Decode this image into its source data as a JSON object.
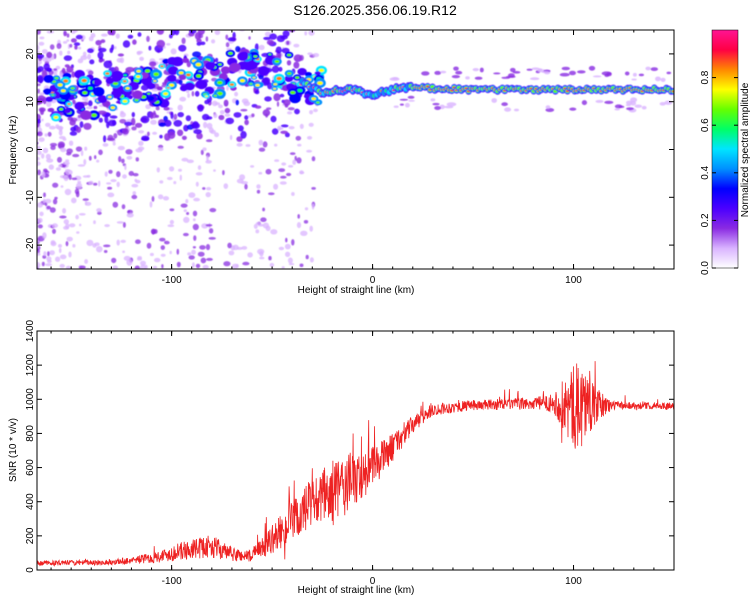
{
  "title": "S126.2025.356.06.19.R12",
  "chart_data": [
    {
      "type": "heatmap",
      "name": "spectrogram",
      "xlabel": "Height of straight line (km)",
      "ylabel": "Frequency (Hz)",
      "xlim": [
        -167,
        150
      ],
      "ylim": [
        -25,
        25
      ],
      "xticks": [
        -100,
        0,
        100
      ],
      "yticks": [
        -20,
        -10,
        0,
        10,
        20
      ],
      "grid": false,
      "ridge": [
        {
          "x": -160,
          "freq": 11
        },
        {
          "x": -120,
          "freq": 12
        },
        {
          "x": -95,
          "freq": 15
        },
        {
          "x": -70,
          "freq": 16
        },
        {
          "x": -55,
          "freq": 18
        },
        {
          "x": -40,
          "freq": 15
        },
        {
          "x": -25,
          "freq": 12
        },
        {
          "x": -10,
          "freq": 12.5
        },
        {
          "x": 0,
          "freq": 11.5
        },
        {
          "x": 15,
          "freq": 13
        },
        {
          "x": 50,
          "freq": 12.5
        },
        {
          "x": 100,
          "freq": 12.5
        },
        {
          "x": 150,
          "freq": 12.5
        }
      ],
      "colorbar": {
        "label": "Normalized spectral amplitude",
        "range": [
          0,
          1
        ],
        "ticks": [
          "0.0",
          "0.2",
          "0.4",
          "0.6",
          "0.8"
        ],
        "colors": [
          "#ffffff",
          "#d9b3ff",
          "#8a2be2",
          "#4b00ff",
          "#0000ff",
          "#0090ff",
          "#00e5ff",
          "#00ff66",
          "#66ff00",
          "#ffff00",
          "#ff8800",
          "#ff0044",
          "#ff1493"
        ]
      }
    },
    {
      "type": "line",
      "name": "snr",
      "xlabel": "Height of straight line (km)",
      "ylabel": "SNR (10 * v/v)",
      "xlim": [
        -167,
        150
      ],
      "ylim": [
        0,
        1400
      ],
      "xticks": [
        -100,
        0,
        100
      ],
      "yticks": [
        0,
        200,
        400,
        600,
        800,
        1000,
        1200,
        1400
      ],
      "color": "#ee2222",
      "series": [
        {
          "name": "SNR",
          "envelope": [
            {
              "x": -167,
              "base": 40,
              "amp": 25
            },
            {
              "x": -130,
              "base": 45,
              "amp": 25
            },
            {
              "x": -110,
              "base": 70,
              "amp": 50
            },
            {
              "x": -95,
              "base": 110,
              "amp": 90
            },
            {
              "x": -80,
              "base": 140,
              "amp": 110
            },
            {
              "x": -70,
              "base": 90,
              "amp": 70
            },
            {
              "x": -60,
              "base": 80,
              "amp": 60
            },
            {
              "x": -50,
              "base": 180,
              "amp": 140
            },
            {
              "x": -40,
              "base": 280,
              "amp": 200
            },
            {
              "x": -30,
              "base": 380,
              "amp": 280
            },
            {
              "x": -20,
              "base": 450,
              "amp": 320
            },
            {
              "x": -10,
              "base": 520,
              "amp": 300
            },
            {
              "x": 0,
              "base": 600,
              "amp": 200
            },
            {
              "x": 10,
              "base": 720,
              "amp": 140
            },
            {
              "x": 20,
              "base": 850,
              "amp": 90
            },
            {
              "x": 30,
              "base": 940,
              "amp": 60
            },
            {
              "x": 50,
              "base": 965,
              "amp": 50
            },
            {
              "x": 80,
              "base": 975,
              "amp": 60
            },
            {
              "x": 90,
              "base": 980,
              "amp": 90
            },
            {
              "x": 96,
              "base": 960,
              "amp": 300
            },
            {
              "x": 100,
              "base": 950,
              "amp": 420
            },
            {
              "x": 105,
              "base": 980,
              "amp": 420
            },
            {
              "x": 110,
              "base": 960,
              "amp": 200
            },
            {
              "x": 120,
              "base": 965,
              "amp": 40
            },
            {
              "x": 150,
              "base": 960,
              "amp": 30
            }
          ]
        }
      ]
    }
  ]
}
